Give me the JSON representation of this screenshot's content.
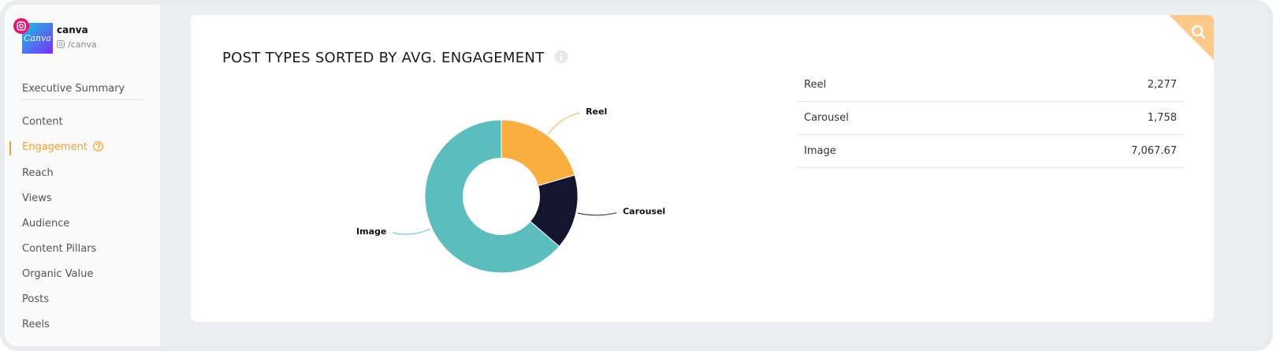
{
  "sidebar": {
    "profile": {
      "logo_text": "Canva",
      "name": "canva",
      "handle": "/canva"
    },
    "nav": [
      "Executive Summary",
      "Content",
      "Engagement",
      "Reach",
      "Views",
      "Audience",
      "Content Pillars",
      "Organic Value",
      "Posts",
      "Reels"
    ],
    "active": 2
  },
  "panel": {
    "title": "POST TYPES SORTED BY AVG. ENGAGEMENT",
    "chart": {
      "type": "pie",
      "categories": [
        "Reel",
        "Carousel",
        "Image"
      ],
      "values": [
        2277,
        1758,
        7067.67
      ],
      "value_labels": [
        "2,277",
        "1,758",
        "7,067.67"
      ],
      "colors": [
        "#f9ae3f",
        "#16152f",
        "#5bbdbe"
      ],
      "hole": 0.5
    }
  }
}
